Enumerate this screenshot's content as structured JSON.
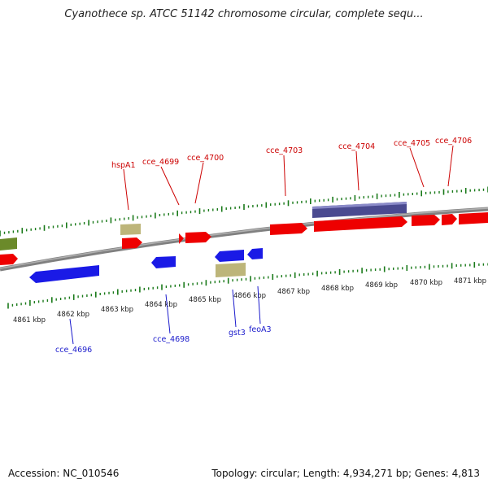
{
  "title": "Cyanothece sp. ATCC 51142 chromosome circular, complete sequ...",
  "footer": {
    "accession": "Accession: NC_010546",
    "summary": "Topology: circular; Length: 4,934,271 bp; Genes: 4,813"
  },
  "colors": {
    "forward_gene": "#ee0000",
    "reverse_gene": "#1a1ae6",
    "rna_gene": "#bdb57a",
    "other_gene": "#6b8a2a",
    "repeat_region": "#4a4a90",
    "label_forward": "#cc0000",
    "label_reverse": "#1a1acc",
    "tick": "#1a7a1a",
    "backbone": "#808080"
  },
  "kbp_labels": [
    "4861 kbp",
    "4862 kbp",
    "4863 kbp",
    "4864 kbp",
    "4865 kbp",
    "4866 kbp",
    "4867 kbp",
    "4868 kbp",
    "4869 kbp",
    "4870 kbp",
    "4871 kbp"
  ],
  "top_labels": [
    "hspA1",
    "cce_4699",
    "cce_4700",
    "cce_4703",
    "cce_4704",
    "cce_4705",
    "cce_4706"
  ],
  "bottom_labels": [
    "cce_4696",
    "cce_4698",
    "gst3",
    "feoA3"
  ]
}
